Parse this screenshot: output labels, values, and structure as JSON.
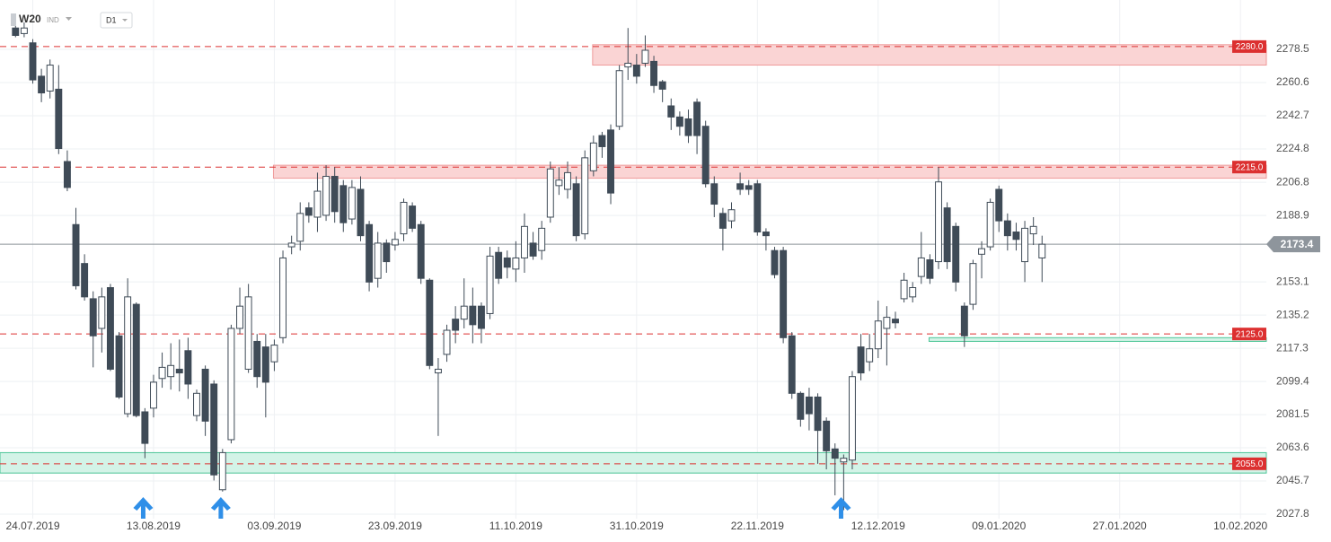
{
  "header": {
    "symbol": "W20",
    "market": "IND",
    "timeframe": "D1"
  },
  "chart_data": {
    "type": "candlestick",
    "open": [
      2290,
      2287,
      2282,
      2264,
      2256,
      2257,
      2218,
      2184,
      2163,
      2144,
      2128,
      2150,
      2124,
      2082,
      2141,
      2083,
      2085,
      2101,
      2102,
      2106,
      2116,
      2081,
      2106,
      2098,
      2041,
      2068,
      2128,
      2106,
      2121,
      2118,
      2110,
      2123,
      2172,
      2175,
      2193,
      2188,
      2189,
      2210,
      2205,
      2187,
      2203,
      2184,
      2155,
      2174,
      2173,
      2179,
      2194,
      2184,
      2154,
      2104,
      2114,
      2133,
      2133,
      2140,
      2140,
      2136,
      2169,
      2166,
      2160,
      2166,
      2174,
      2170,
      2188,
      2205,
      2203,
      2206,
      2179,
      2213,
      2232,
      2235,
      2237,
      2269,
      2270,
      2271,
      2272,
      2261,
      2248,
      2242,
      2241,
      2250,
      2237,
      2206,
      2190,
      2186,
      2206,
      2205,
      2206,
      2180,
      2170,
      2170,
      2124,
      2093,
      2091,
      2091,
      2078,
      2063,
      2056,
      2057,
      2118,
      2110,
      2117,
      2128,
      2133,
      2144,
      2145,
      2156,
      2165,
      2164,
      2193,
      2183,
      2140,
      2141,
      2168,
      2172,
      2203,
      2186,
      2180,
      2164,
      2179,
      2166
    ],
    "high": [
      2292,
      2293,
      2284,
      2268,
      2273,
      2270,
      2224,
      2193,
      2168,
      2148,
      2150,
      2152,
      2126,
      2155,
      2142,
      2085,
      2103,
      2115,
      2120,
      2122,
      2123,
      2095,
      2108,
      2100,
      2063,
      2130,
      2150,
      2152,
      2125,
      2125,
      2122,
      2170,
      2178,
      2196,
      2196,
      2212,
      2216,
      2215,
      2208,
      2208,
      2210,
      2186,
      2180,
      2176,
      2180,
      2198,
      2196,
      2186,
      2155,
      2112,
      2130,
      2140,
      2155,
      2150,
      2142,
      2172,
      2172,
      2170,
      2175,
      2190,
      2180,
      2186,
      2218,
      2215,
      2218,
      2210,
      2224,
      2232,
      2234,
      2238,
      2270,
      2290,
      2276,
      2286,
      2275,
      2262,
      2252,
      2245,
      2246,
      2252,
      2240,
      2210,
      2193,
      2196,
      2212,
      2208,
      2208,
      2182,
      2172,
      2172,
      2126,
      2094,
      2096,
      2093,
      2080,
      2066,
      2060,
      2105,
      2125,
      2125,
      2143,
      2140,
      2137,
      2158,
      2153,
      2180,
      2168,
      2215,
      2196,
      2185,
      2142,
      2165,
      2175,
      2198,
      2205,
      2190,
      2185,
      2186,
      2188,
      2178
    ],
    "low": [
      2285,
      2285,
      2260,
      2250,
      2252,
      2222,
      2202,
      2149,
      2143,
      2107,
      2115,
      2105,
      2090,
      2080,
      2080,
      2058,
      2080,
      2096,
      2095,
      2094,
      2090,
      2078,
      2070,
      2046,
      2040,
      2066,
      2125,
      2104,
      2096,
      2080,
      2105,
      2120,
      2168,
      2170,
      2185,
      2180,
      2186,
      2185,
      2180,
      2184,
      2175,
      2148,
      2150,
      2158,
      2170,
      2175,
      2180,
      2152,
      2106,
      2070,
      2110,
      2120,
      2128,
      2120,
      2120,
      2133,
      2152,
      2155,
      2153,
      2158,
      2165,
      2165,
      2185,
      2200,
      2198,
      2175,
      2176,
      2210,
      2220,
      2195,
      2235,
      2262,
      2260,
      2269,
      2255,
      2250,
      2235,
      2232,
      2228,
      2222,
      2204,
      2188,
      2170,
      2182,
      2200,
      2200,
      2178,
      2170,
      2155,
      2120,
      2090,
      2075,
      2073,
      2055,
      2052,
      2038,
      2030,
      2052,
      2100,
      2105,
      2112,
      2108,
      2128,
      2142,
      2142,
      2152,
      2152,
      2160,
      2160,
      2148,
      2118,
      2138,
      2155,
      2170,
      2180,
      2170,
      2170,
      2153,
      2173,
      2153
    ],
    "close": [
      2286,
      2290,
      2262,
      2255,
      2270,
      2225,
      2204,
      2151,
      2145,
      2124,
      2145,
      2106,
      2091,
      2145,
      2081,
      2066,
      2099,
      2107,
      2108,
      2104,
      2098,
      2093,
      2078,
      2049,
      2061,
      2128,
      2140,
      2145,
      2102,
      2099,
      2119,
      2166,
      2174,
      2190,
      2189,
      2202,
      2210,
      2191,
      2185,
      2204,
      2178,
      2153,
      2174,
      2164,
      2176,
      2196,
      2182,
      2155,
      2108,
      2106,
      2127,
      2127,
      2140,
      2130,
      2128,
      2167,
      2155,
      2161,
      2166,
      2183,
      2167,
      2182,
      2214,
      2208,
      2212,
      2178,
      2220,
      2228,
      2226,
      2201,
      2267,
      2271,
      2264,
      2278,
      2259,
      2257,
      2242,
      2237,
      2232,
      2232,
      2206,
      2195,
      2182,
      2192,
      2203,
      2203,
      2180,
      2178,
      2157,
      2123,
      2093,
      2079,
      2082,
      2073,
      2062,
      2058,
      2058,
      2102,
      2104,
      2117,
      2132,
      2134,
      2131,
      2154,
      2150,
      2166,
      2155,
      2207,
      2164,
      2153,
      2124,
      2163,
      2171,
      2196,
      2186,
      2178,
      2176,
      2182,
      2183,
      2173.4
    ],
    "up_color": "#ffffff",
    "down_color": "#3f4b57",
    "xlim": [
      -1.8,
      145
    ],
    "xticks": [
      {
        "value": 2,
        "label": "24.07.2019"
      },
      {
        "value": 16,
        "label": "13.08.2019"
      },
      {
        "value": 30,
        "label": "03.09.2019"
      },
      {
        "value": 44,
        "label": "23.09.2019"
      },
      {
        "value": 58,
        "label": "11.10.2019"
      },
      {
        "value": 72,
        "label": "31.10.2019"
      },
      {
        "value": 86,
        "label": "22.11.2019"
      },
      {
        "value": 100,
        "label": "12.12.2019"
      },
      {
        "value": 114,
        "label": "09.01.2020"
      },
      {
        "value": 128,
        "label": "27.01.2020"
      },
      {
        "value": 142,
        "label": "10.02.2020"
      }
    ],
    "ylim": [
      2025.4,
      2305.1
    ],
    "yticks": [
      2278.5,
      2260.6,
      2242.7,
      2224.8,
      2206.8,
      2188.9,
      2153.1,
      2135.2,
      2117.3,
      2099.4,
      2081.5,
      2063.6,
      2045.7,
      2027.8
    ],
    "grid": true,
    "zones": [
      {
        "from": 2270,
        "to": 2281,
        "start": 66.9,
        "color": "#fad4d4",
        "edge": "#ef9a9a"
      },
      {
        "from": 2209,
        "to": 2216,
        "start": 29.9,
        "color": "#fad4d4",
        "edge": "#ef9a9a"
      },
      {
        "from": 2050,
        "to": 2061,
        "start": -1.8,
        "color": "#d3f3e7",
        "edge": "#4cc597"
      },
      {
        "from": 2121,
        "to": 2123,
        "start": 105.9,
        "color": "#d3f3e7",
        "edge": "#4cc597"
      }
    ],
    "levels": [
      {
        "value": 2280,
        "label": "2280.0"
      },
      {
        "value": 2215,
        "label": "2215.0"
      },
      {
        "value": 2125,
        "label": "2125.0"
      },
      {
        "value": 2055,
        "label": "2055.0"
      }
    ],
    "level_color": "#dc3030",
    "current_price": 2173.4,
    "arrows": [
      14.8,
      23.8,
      95.7
    ],
    "arrow_color": "#2f8fe8"
  }
}
